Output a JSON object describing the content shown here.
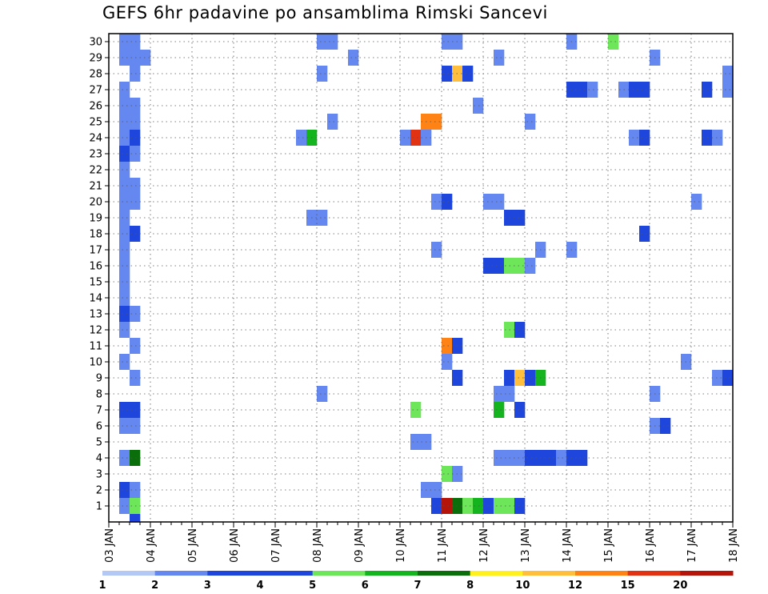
{
  "title": "GEFS 6hr padavine po ansamblima Rimski Sancevi",
  "chart_data": {
    "type": "heatmap",
    "title": "GEFS 6hr padavine po ansamblima Rimski Sancevi",
    "x_tick_labels": [
      "03 JAN",
      "04 JAN",
      "05 JAN",
      "06 JAN",
      "07 JAN",
      "08 JAN",
      "09 JAN",
      "10 JAN",
      "11 JAN",
      "12 JAN",
      "13 JAN",
      "14 JAN",
      "15 JAN",
      "16 JAN",
      "17 JAN",
      "18 JAN"
    ],
    "x_range_days": [
      0,
      15
    ],
    "x_step_hours": 6,
    "y_tick_labels": [
      "1",
      "2",
      "3",
      "4",
      "5",
      "6",
      "7",
      "8",
      "9",
      "10",
      "11",
      "12",
      "13",
      "14",
      "15",
      "16",
      "17",
      "18",
      "19",
      "20",
      "21",
      "22",
      "23",
      "24",
      "25",
      "26",
      "27",
      "28",
      "29",
      "30"
    ],
    "y_range": [
      0,
      30
    ],
    "grid": true,
    "colorbar": {
      "boundaries": [
        "1",
        "2",
        "3",
        "4",
        "5",
        "6",
        "7",
        "8",
        "10",
        "12",
        "15",
        "20"
      ],
      "colors": [
        "#b4c8f5",
        "#6487f0",
        "#1e46dc",
        "#1e46dc",
        "#6ee65a",
        "#14b41e",
        "#0a6e0a",
        "#fff01e",
        "#ffbe3c",
        "#ff8214",
        "#e13214",
        "#b4140a",
        "#6e0a0a"
      ],
      "placement": "bottom"
    },
    "cells": [
      {
        "t": 0.25,
        "m": 30,
        "c": 1
      },
      {
        "t": 0.5,
        "m": 30,
        "c": 1
      },
      {
        "t": 0.25,
        "m": 29,
        "c": 1
      },
      {
        "t": 0.5,
        "m": 29,
        "c": 1
      },
      {
        "t": 0.75,
        "m": 29,
        "c": 1
      },
      {
        "t": 0.5,
        "m": 28,
        "c": 1
      },
      {
        "t": 0.25,
        "m": 27,
        "c": 1
      },
      {
        "t": 0.25,
        "m": 26,
        "c": 1
      },
      {
        "t": 0.5,
        "m": 26,
        "c": 1
      },
      {
        "t": 0.25,
        "m": 25,
        "c": 1
      },
      {
        "t": 0.5,
        "m": 25,
        "c": 1
      },
      {
        "t": 0.25,
        "m": 24,
        "c": 1
      },
      {
        "t": 0.5,
        "m": 24,
        "c": 2
      },
      {
        "t": 0.25,
        "m": 23,
        "c": 2
      },
      {
        "t": 0.5,
        "m": 23,
        "c": 1
      },
      {
        "t": 0.25,
        "m": 22,
        "c": 1
      },
      {
        "t": 0.25,
        "m": 21,
        "c": 1
      },
      {
        "t": 0.5,
        "m": 21,
        "c": 1
      },
      {
        "t": 0.25,
        "m": 20,
        "c": 1
      },
      {
        "t": 0.5,
        "m": 20,
        "c": 1
      },
      {
        "t": 0.25,
        "m": 19,
        "c": 1
      },
      {
        "t": 0.25,
        "m": 18,
        "c": 1
      },
      {
        "t": 0.5,
        "m": 18,
        "c": 3
      },
      {
        "t": 0.25,
        "m": 17,
        "c": 1
      },
      {
        "t": 0.25,
        "m": 16,
        "c": 1
      },
      {
        "t": 0.25,
        "m": 15,
        "c": 1
      },
      {
        "t": 0.25,
        "m": 14,
        "c": 1
      },
      {
        "t": 0.25,
        "m": 13,
        "c": 2
      },
      {
        "t": 0.5,
        "m": 13,
        "c": 1
      },
      {
        "t": 0.25,
        "m": 12,
        "c": 1
      },
      {
        "t": 0.5,
        "m": 11,
        "c": 1
      },
      {
        "t": 0.25,
        "m": 10,
        "c": 1
      },
      {
        "t": 0.5,
        "m": 9,
        "c": 1
      },
      {
        "t": 0.25,
        "m": 7,
        "c": 3
      },
      {
        "t": 0.5,
        "m": 7,
        "c": 2
      },
      {
        "t": 0.25,
        "m": 6,
        "c": 1
      },
      {
        "t": 0.5,
        "m": 6,
        "c": 1
      },
      {
        "t": 0.25,
        "m": 4,
        "c": 1
      },
      {
        "t": 0.5,
        "m": 4,
        "c": 6
      },
      {
        "t": 0.25,
        "m": 2,
        "c": 2
      },
      {
        "t": 0.5,
        "m": 2,
        "c": 1
      },
      {
        "t": 0.25,
        "m": 1,
        "c": 1
      },
      {
        "t": 0.5,
        "m": 1,
        "c": 4
      },
      {
        "t": 0.5,
        "m": 0,
        "c": 3
      },
      {
        "t": 5.0,
        "m": 30,
        "c": 1
      },
      {
        "t": 5.25,
        "m": 30,
        "c": 1
      },
      {
        "t": 5.0,
        "m": 28,
        "c": 1
      },
      {
        "t": 5.25,
        "m": 25,
        "c": 1
      },
      {
        "t": 4.5,
        "m": 24,
        "c": 1
      },
      {
        "t": 4.75,
        "m": 24,
        "c": 5
      },
      {
        "t": 4.75,
        "m": 19,
        "c": 1
      },
      {
        "t": 5.0,
        "m": 19,
        "c": 1
      },
      {
        "t": 5.0,
        "m": 8,
        "c": 1
      },
      {
        "t": 5.75,
        "m": 29,
        "c": 1
      },
      {
        "t": 7.0,
        "m": 24,
        "c": 1
      },
      {
        "t": 7.25,
        "m": 24,
        "c": 10
      },
      {
        "t": 7.5,
        "m": 24,
        "c": 1
      },
      {
        "t": 7.5,
        "m": 25,
        "c": 9
      },
      {
        "t": 7.75,
        "m": 25,
        "c": 9
      },
      {
        "t": 7.25,
        "m": 7,
        "c": 4
      },
      {
        "t": 7.25,
        "m": 5,
        "c": 1
      },
      {
        "t": 7.5,
        "m": 5,
        "c": 1
      },
      {
        "t": 7.5,
        "m": 2,
        "c": 1
      },
      {
        "t": 7.75,
        "m": 2,
        "c": 1
      },
      {
        "t": 7.75,
        "m": 20,
        "c": 1
      },
      {
        "t": 8.0,
        "m": 20,
        "c": 2
      },
      {
        "t": 7.75,
        "m": 17,
        "c": 1
      },
      {
        "t": 7.75,
        "m": 1,
        "c": 3
      },
      {
        "t": 8.0,
        "m": 1,
        "c": 11
      },
      {
        "t": 8.0,
        "m": 30,
        "c": 1
      },
      {
        "t": 8.25,
        "m": 30,
        "c": 1
      },
      {
        "t": 8.0,
        "m": 28,
        "c": 2
      },
      {
        "t": 8.25,
        "m": 28,
        "c": 8
      },
      {
        "t": 8.5,
        "m": 28,
        "c": 3
      },
      {
        "t": 8.75,
        "m": 26,
        "c": 1
      },
      {
        "t": 8.0,
        "m": 11,
        "c": 9
      },
      {
        "t": 8.25,
        "m": 11,
        "c": 3
      },
      {
        "t": 8.0,
        "m": 10,
        "c": 1
      },
      {
        "t": 8.25,
        "m": 9,
        "c": 3
      },
      {
        "t": 8.0,
        "m": 3,
        "c": 4
      },
      {
        "t": 8.25,
        "m": 3,
        "c": 1
      },
      {
        "t": 8.25,
        "m": 1,
        "c": 6
      },
      {
        "t": 8.5,
        "m": 1,
        "c": 4
      },
      {
        "t": 8.75,
        "m": 1,
        "c": 5
      },
      {
        "t": 9.0,
        "m": 1,
        "c": 2
      },
      {
        "t": 9.25,
        "m": 1,
        "c": 4
      },
      {
        "t": 9.5,
        "m": 1,
        "c": 4
      },
      {
        "t": 9.75,
        "m": 1,
        "c": 2
      },
      {
        "t": 9.25,
        "m": 29,
        "c": 1
      },
      {
        "t": 9.0,
        "m": 20,
        "c": 1
      },
      {
        "t": 9.25,
        "m": 20,
        "c": 1
      },
      {
        "t": 9.0,
        "m": 16,
        "c": 3
      },
      {
        "t": 9.25,
        "m": 16,
        "c": 2
      },
      {
        "t": 9.5,
        "m": 16,
        "c": 4
      },
      {
        "t": 9.75,
        "m": 16,
        "c": 4
      },
      {
        "t": 9.5,
        "m": 19,
        "c": 2
      },
      {
        "t": 9.75,
        "m": 19,
        "c": 3
      },
      {
        "t": 9.5,
        "m": 12,
        "c": 4
      },
      {
        "t": 9.75,
        "m": 12,
        "c": 3
      },
      {
        "t": 9.5,
        "m": 9,
        "c": 3
      },
      {
        "t": 9.75,
        "m": 9,
        "c": 8
      },
      {
        "t": 9.25,
        "m": 8,
        "c": 1
      },
      {
        "t": 9.5,
        "m": 8,
        "c": 1
      },
      {
        "t": 9.25,
        "m": 7,
        "c": 5
      },
      {
        "t": 9.75,
        "m": 7,
        "c": 2
      },
      {
        "t": 9.25,
        "m": 4,
        "c": 1
      },
      {
        "t": 9.5,
        "m": 4,
        "c": 1
      },
      {
        "t": 9.75,
        "m": 4,
        "c": 1
      },
      {
        "t": 10.0,
        "m": 16,
        "c": 1
      },
      {
        "t": 10.0,
        "m": 25,
        "c": 1
      },
      {
        "t": 10.0,
        "m": 9,
        "c": 3
      },
      {
        "t": 10.25,
        "m": 9,
        "c": 5
      },
      {
        "t": 10.0,
        "m": 4,
        "c": 3
      },
      {
        "t": 10.25,
        "m": 4,
        "c": 2
      },
      {
        "t": 10.5,
        "m": 4,
        "c": 3
      },
      {
        "t": 10.75,
        "m": 4,
        "c": 1
      },
      {
        "t": 10.25,
        "m": 17,
        "c": 1
      },
      {
        "t": 11.0,
        "m": 30,
        "c": 1
      },
      {
        "t": 11.0,
        "m": 17,
        "c": 1
      },
      {
        "t": 11.0,
        "m": 27,
        "c": 3
      },
      {
        "t": 11.25,
        "m": 27,
        "c": 3
      },
      {
        "t": 11.5,
        "m": 27,
        "c": 1
      },
      {
        "t": 11.0,
        "m": 4,
        "c": 3
      },
      {
        "t": 11.25,
        "m": 4,
        "c": 3
      },
      {
        "t": 12.0,
        "m": 30,
        "c": 4
      },
      {
        "t": 12.25,
        "m": 27,
        "c": 1
      },
      {
        "t": 12.5,
        "m": 27,
        "c": 2
      },
      {
        "t": 12.75,
        "m": 27,
        "c": 2
      },
      {
        "t": 12.5,
        "m": 24,
        "c": 1
      },
      {
        "t": 12.75,
        "m": 24,
        "c": 3
      },
      {
        "t": 12.75,
        "m": 18,
        "c": 2
      },
      {
        "t": 13.0,
        "m": 29,
        "c": 1
      },
      {
        "t": 13.0,
        "m": 8,
        "c": 1
      },
      {
        "t": 13.0,
        "m": 6,
        "c": 1
      },
      {
        "t": 13.25,
        "m": 6,
        "c": 2
      },
      {
        "t": 14.0,
        "m": 20,
        "c": 1
      },
      {
        "t": 13.75,
        "m": 10,
        "c": 1
      },
      {
        "t": 14.25,
        "m": 27,
        "c": 2
      },
      {
        "t": 14.25,
        "m": 24,
        "c": 2
      },
      {
        "t": 14.5,
        "m": 24,
        "c": 1
      },
      {
        "t": 14.75,
        "m": 28,
        "c": 1
      },
      {
        "t": 14.75,
        "m": 27,
        "c": 1
      },
      {
        "t": 14.5,
        "m": 9,
        "c": 1
      },
      {
        "t": 14.75,
        "m": 9,
        "c": 2
      }
    ]
  }
}
